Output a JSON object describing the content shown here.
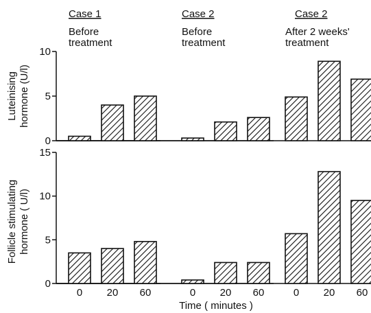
{
  "chart_data": {
    "type": "bar",
    "panel_headers": [
      {
        "title": "Case 1",
        "subtitle_line1": "Before",
        "subtitle_line2": "treatment"
      },
      {
        "title": "Case 2",
        "subtitle_line1": "Before",
        "subtitle_line2": "treatment"
      },
      {
        "title": "Case 2",
        "subtitle_line1": "After 2 weeks'",
        "subtitle_line2": "treatment"
      }
    ],
    "categories": [
      "0",
      "20",
      "60"
    ],
    "xlabel": "Time ( minutes )",
    "charts": [
      {
        "ylabel_line1": "Luteinising",
        "ylabel_line2": "hormone (U/l)",
        "ylim": [
          0,
          10
        ],
        "yticks": [
          0,
          5,
          10
        ],
        "groups": [
          {
            "values": [
              0.5,
              4.0,
              5.0
            ]
          },
          {
            "values": [
              0.3,
              2.1,
              2.6
            ]
          },
          {
            "values": [
              4.9,
              8.9,
              6.9
            ]
          }
        ]
      },
      {
        "ylabel_line1": "Follicle stimulating",
        "ylabel_line2": "hormone ( U/l)",
        "ylim": [
          0,
          15
        ],
        "yticks": [
          0,
          5,
          10,
          15
        ],
        "groups": [
          {
            "values": [
              3.5,
              4.0,
              4.8
            ]
          },
          {
            "values": [
              0.4,
              2.4,
              2.4
            ]
          },
          {
            "values": [
              5.7,
              12.8,
              9.5
            ]
          }
        ]
      }
    ]
  }
}
